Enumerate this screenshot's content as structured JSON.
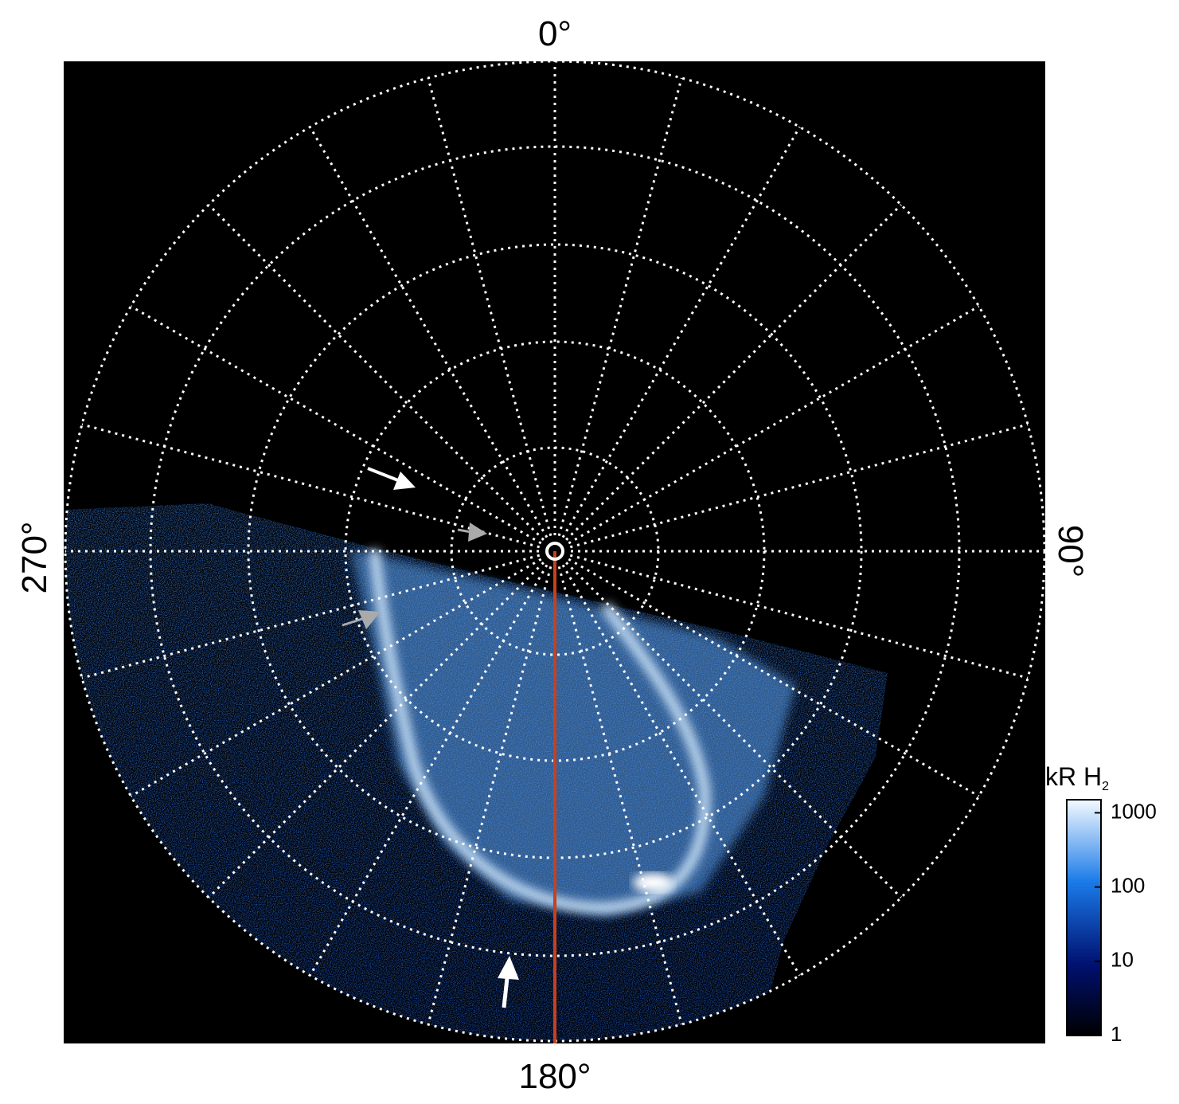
{
  "labels": {
    "top": "0°",
    "right": "90°",
    "bottom": "180°",
    "left": "270°"
  },
  "colorbar": {
    "title": "kR H",
    "title_subscript": "2",
    "ticks": [
      1,
      10,
      100,
      1000
    ],
    "lim": [
      1,
      1500
    ],
    "log": true
  }
}
